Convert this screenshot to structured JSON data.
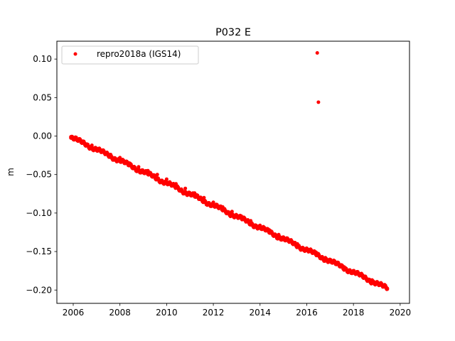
{
  "chart_data": {
    "type": "scatter",
    "title": "P032 E",
    "xlabel": "",
    "ylabel": "m",
    "xlim": [
      2005.3,
      2020.4
    ],
    "ylim": [
      -0.2173,
      0.1232
    ],
    "x_ticks": [
      2006,
      2008,
      2010,
      2012,
      2014,
      2016,
      2018,
      2020
    ],
    "x_tick_labels": [
      "2006",
      "2008",
      "2010",
      "2012",
      "2014",
      "2016",
      "2018",
      "2020"
    ],
    "y_ticks": [
      0.1,
      0.05,
      0.0,
      -0.05,
      -0.1,
      -0.15,
      -0.2
    ],
    "y_tick_labels": [
      "0.10",
      "0.05",
      "0.00",
      "−0.05",
      "−0.10",
      "−0.15",
      "−0.20"
    ],
    "grid": false,
    "legend_position": "top-left",
    "series": [
      {
        "name": "repro2018a (IGS14)",
        "color": "#ff0000",
        "marker": "point",
        "trend": {
          "x_start": 2005.9,
          "x_end": 2019.45,
          "y_start": -0.0015,
          "y_end": -0.198
        },
        "points": [
          [
            2005.9,
            -0.001
          ],
          [
            2006.0,
            -0.003
          ],
          [
            2006.2,
            -0.006
          ],
          [
            2006.5,
            -0.01
          ],
          [
            2006.8,
            -0.012
          ],
          [
            2007.0,
            -0.016
          ],
          [
            2007.3,
            -0.019
          ],
          [
            2007.6,
            -0.024
          ],
          [
            2008.0,
            -0.028
          ],
          [
            2008.4,
            -0.035
          ],
          [
            2008.8,
            -0.04
          ],
          [
            2009.2,
            -0.045
          ],
          [
            2009.6,
            -0.05
          ],
          [
            2010.0,
            -0.056
          ],
          [
            2010.4,
            -0.062
          ],
          [
            2010.8,
            -0.068
          ],
          [
            2011.2,
            -0.074
          ],
          [
            2011.6,
            -0.08
          ],
          [
            2012.0,
            -0.086
          ],
          [
            2012.4,
            -0.092
          ],
          [
            2012.8,
            -0.098
          ],
          [
            2013.2,
            -0.104
          ],
          [
            2013.6,
            -0.11
          ],
          [
            2014.0,
            -0.116
          ],
          [
            2014.4,
            -0.122
          ],
          [
            2014.8,
            -0.128
          ],
          [
            2015.2,
            -0.134
          ],
          [
            2015.6,
            -0.14
          ],
          [
            2016.0,
            -0.146
          ],
          [
            2016.4,
            -0.151
          ],
          [
            2016.8,
            -0.158
          ],
          [
            2017.2,
            -0.164
          ],
          [
            2017.6,
            -0.17
          ],
          [
            2018.0,
            -0.176
          ],
          [
            2018.4,
            -0.181
          ],
          [
            2018.8,
            -0.187
          ],
          [
            2019.2,
            -0.193
          ],
          [
            2019.45,
            -0.198
          ]
        ],
        "outliers": [
          [
            2016.45,
            0.108
          ],
          [
            2016.5,
            0.044
          ]
        ]
      }
    ]
  }
}
